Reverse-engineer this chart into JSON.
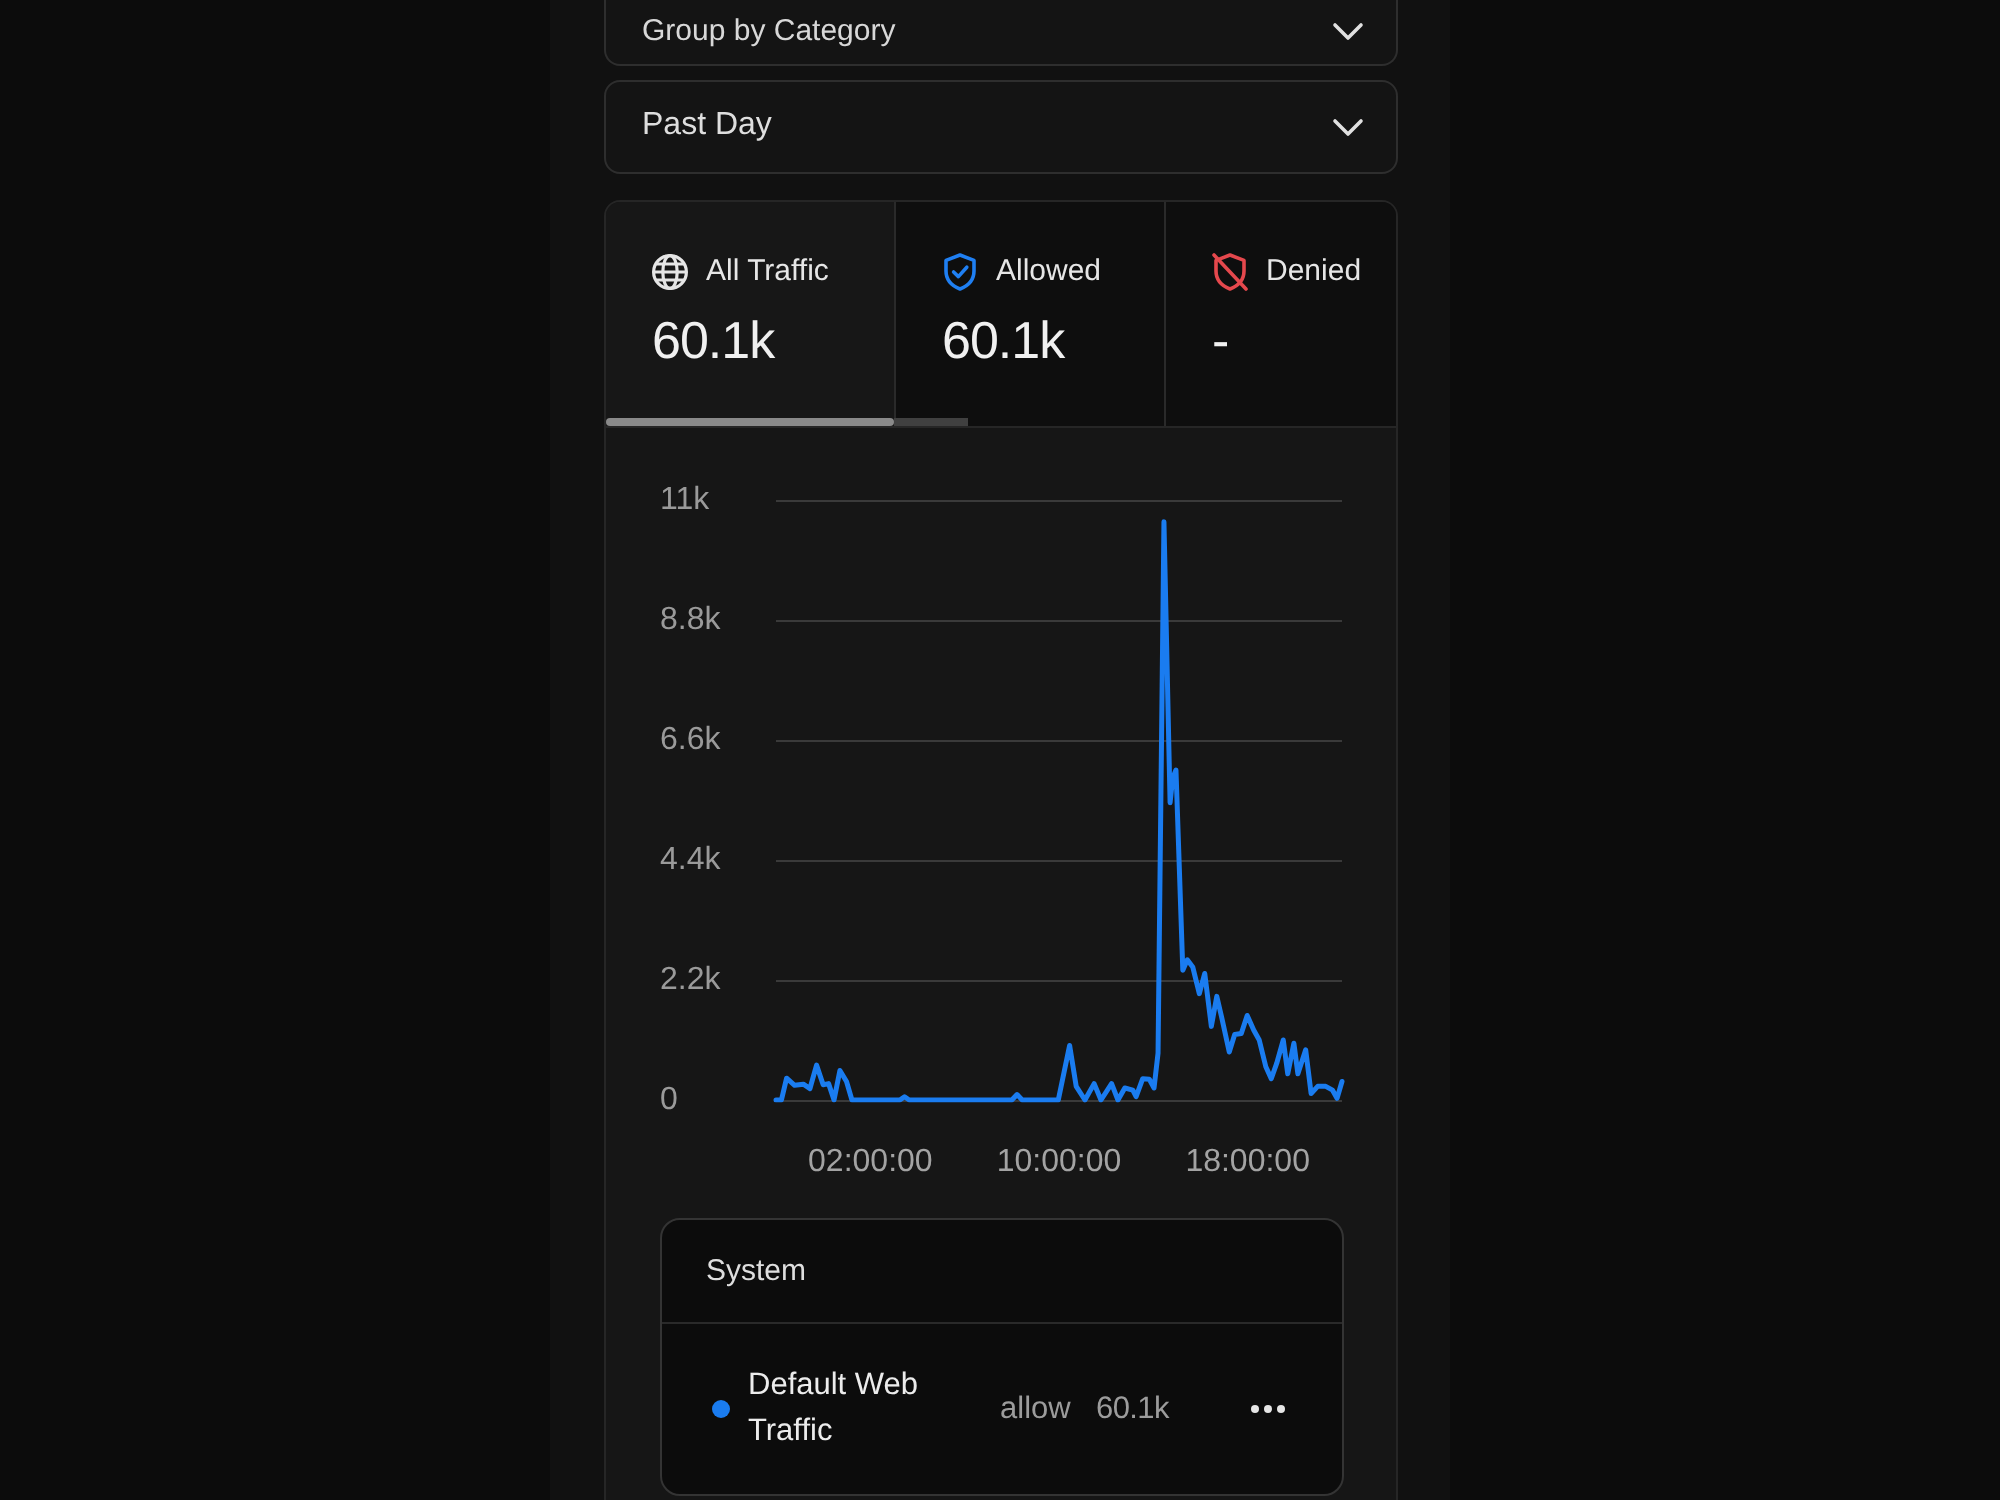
{
  "chart_data": {
    "type": "line",
    "x": [
      -2,
      -1.77,
      -1.55,
      -1.21,
      -0.84,
      -0.56,
      -0.28,
      0,
      0.23,
      0.46,
      0.71,
      0.99,
      1.22,
      3.25,
      3.45,
      3.65,
      8,
      8.22,
      8.44,
      9.97,
      10.45,
      10.73,
      11.1,
      11.49,
      11.78,
      12.23,
      12.5,
      12.79,
      13.13,
      13.27,
      13.55,
      13.83,
      14.03,
      14.2,
      14.45,
      14.71,
      14.82,
      14.96,
      15.25,
      15.44,
      15.67,
      15.95,
      16.18,
      16.46,
      16.69,
      16.88,
      17.22,
      17.45,
      17.73,
      17.98,
      18.26,
      18.49,
      18.77,
      19,
      19.23,
      19.51,
      19.7,
      19.96,
      20.13,
      20.46,
      20.69,
      20.97,
      21.31,
      21.6,
      21.79,
      22
    ],
    "series": [
      {
        "name": "Default Web Traffic",
        "color": "#1a7cf0",
        "values": [
          0,
          0,
          400,
          270,
          290,
          210,
          640,
          280,
          300,
          0,
          540,
          340,
          0,
          0,
          60,
          0,
          0,
          100,
          0,
          0,
          1000,
          250,
          0,
          300,
          0,
          300,
          0,
          220,
          180,
          60,
          390,
          380,
          220,
          860,
          10600,
          5450,
          5900,
          6050,
          2380,
          2570,
          2440,
          1950,
          2320,
          1350,
          1900,
          1550,
          880,
          1200,
          1220,
          1550,
          1280,
          1100,
          610,
          390,
          670,
          1100,
          480,
          1040,
          480,
          920,
          120,
          250,
          250,
          180,
          30,
          340
        ]
      }
    ],
    "xlim": [
      -2,
      22
    ],
    "xticks": [
      {
        "value": 2,
        "label": "02:00:00"
      },
      {
        "value": 10,
        "label": "10:00:00"
      },
      {
        "value": 18,
        "label": "18:00:00"
      }
    ],
    "ylim": [
      0,
      11000
    ],
    "yticks": [
      0,
      {
        "value": 2200,
        "label": "2.2k"
      },
      {
        "value": 4400,
        "label": "4.4k"
      },
      {
        "value": 6600,
        "label": "6.6k"
      },
      {
        "value": 8800,
        "label": "8.8k"
      },
      {
        "value": 11000,
        "label": "11k"
      }
    ],
    "grid": "y",
    "legend": "bottom",
    "annotations": [
      "Group by Category",
      "Past Day",
      "All Traffic",
      "60.1k",
      "Allowed",
      "60.1k",
      "Denied",
      "-",
      "System",
      "allow",
      "60.1k"
    ]
  }
}
